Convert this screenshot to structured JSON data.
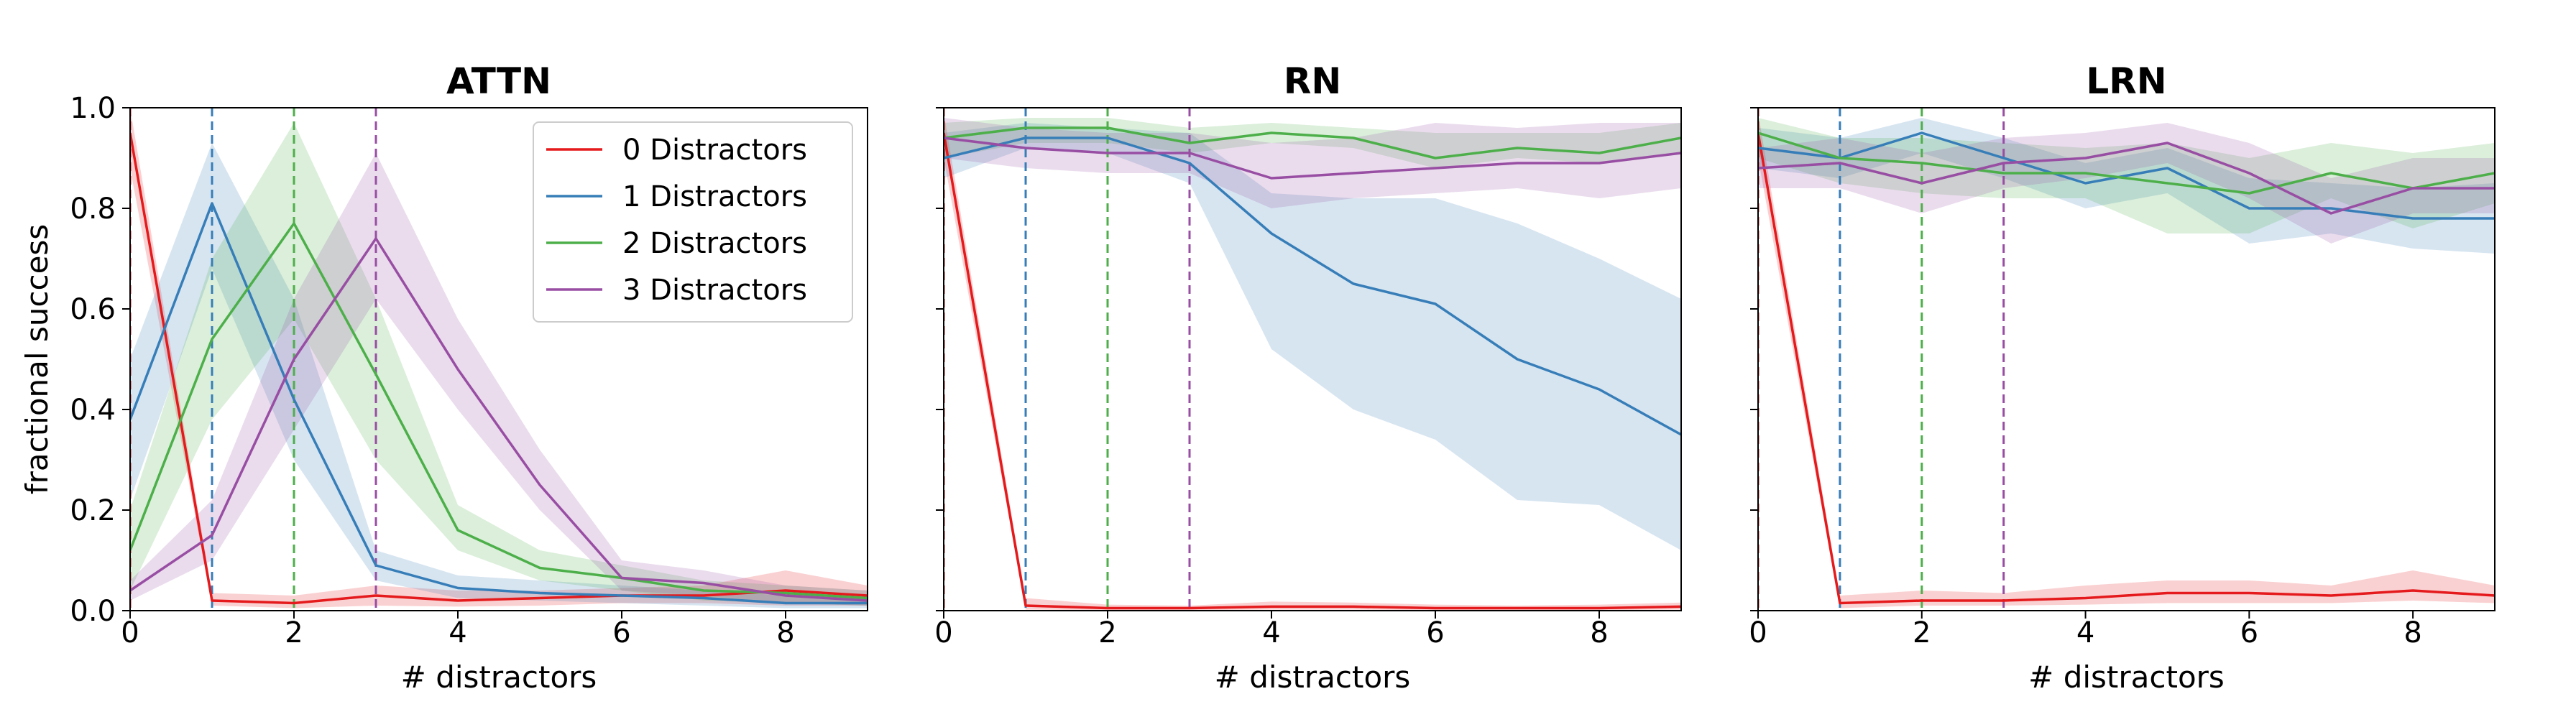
{
  "chart_data": [
    {
      "type": "line",
      "title": "ATTN",
      "xlabel": "# distractors",
      "ylabel": "fractional success",
      "xlim": [
        0,
        9
      ],
      "ylim": [
        0,
        1
      ],
      "xticks": [
        0,
        2,
        4,
        6,
        8
      ],
      "yticks": [
        0.0,
        0.2,
        0.4,
        0.6,
        0.8,
        1.0
      ],
      "legend": "top-right",
      "vlines": [
        0,
        1,
        2,
        3
      ],
      "series": [
        {
          "name": "0 Distractors",
          "color": "#e41a1c",
          "x": [
            0,
            1,
            2,
            3,
            4,
            5,
            6,
            7,
            8,
            9
          ],
          "y": [
            0.95,
            0.02,
            0.015,
            0.03,
            0.02,
            0.025,
            0.03,
            0.03,
            0.04,
            0.03
          ],
          "lower": [
            0.88,
            0.01,
            0.005,
            0.01,
            0.008,
            0.01,
            0.015,
            0.015,
            0.01,
            0.01
          ],
          "upper": [
            1.0,
            0.035,
            0.03,
            0.05,
            0.04,
            0.04,
            0.045,
            0.05,
            0.08,
            0.05
          ]
        },
        {
          "name": "1 Distractors",
          "color": "#377eb8",
          "x": [
            0,
            1,
            2,
            3,
            4,
            5,
            6,
            7,
            8,
            9
          ],
          "y": [
            0.38,
            0.81,
            0.42,
            0.09,
            0.045,
            0.035,
            0.03,
            0.025,
            0.015,
            0.015
          ],
          "lower": [
            0.22,
            0.68,
            0.3,
            0.06,
            0.025,
            0.02,
            0.015,
            0.01,
            0.005,
            0.005
          ],
          "upper": [
            0.5,
            0.93,
            0.62,
            0.12,
            0.07,
            0.06,
            0.05,
            0.04,
            0.03,
            0.03
          ]
        },
        {
          "name": "2 Distractors",
          "color": "#4daf4a",
          "x": [
            0,
            1,
            2,
            3,
            4,
            5,
            6,
            7,
            8,
            9
          ],
          "y": [
            0.12,
            0.54,
            0.77,
            0.47,
            0.16,
            0.085,
            0.065,
            0.04,
            0.035,
            0.025
          ],
          "lower": [
            0.04,
            0.38,
            0.58,
            0.3,
            0.12,
            0.06,
            0.04,
            0.02,
            0.015,
            0.01
          ],
          "upper": [
            0.2,
            0.7,
            0.97,
            0.62,
            0.21,
            0.12,
            0.09,
            0.06,
            0.05,
            0.04
          ]
        },
        {
          "name": "3 Distractors",
          "color": "#984ea3",
          "x": [
            0,
            1,
            2,
            3,
            4,
            5,
            6,
            7,
            8,
            9
          ],
          "y": [
            0.04,
            0.15,
            0.5,
            0.74,
            0.48,
            0.25,
            0.065,
            0.055,
            0.03,
            0.02
          ],
          "lower": [
            0.02,
            0.1,
            0.36,
            0.62,
            0.4,
            0.2,
            0.04,
            0.03,
            0.015,
            0.01
          ],
          "upper": [
            0.06,
            0.22,
            0.62,
            0.91,
            0.58,
            0.32,
            0.1,
            0.08,
            0.05,
            0.04
          ]
        }
      ]
    },
    {
      "type": "line",
      "title": "RN",
      "xlabel": "# distractors",
      "ylabel": "",
      "xlim": [
        0,
        9
      ],
      "ylim": [
        0,
        1
      ],
      "xticks": [
        0,
        2,
        4,
        6,
        8
      ],
      "yticks": [
        0.0,
        0.2,
        0.4,
        0.6,
        0.8,
        1.0
      ],
      "vlines": [
        0,
        1,
        2,
        3
      ],
      "series": [
        {
          "name": "0 Distractors",
          "color": "#e41a1c",
          "x": [
            0,
            1,
            2,
            3,
            4,
            5,
            6,
            7,
            8,
            9
          ],
          "y": [
            0.95,
            0.01,
            0.005,
            0.005,
            0.008,
            0.008,
            0.005,
            0.005,
            0.005,
            0.008
          ],
          "lower": [
            0.9,
            0.002,
            0.001,
            0.001,
            0.002,
            0.002,
            0.001,
            0.001,
            0.001,
            0.002
          ],
          "upper": [
            0.99,
            0.025,
            0.012,
            0.01,
            0.018,
            0.016,
            0.012,
            0.01,
            0.012,
            0.016
          ]
        },
        {
          "name": "1 Distractors",
          "color": "#377eb8",
          "x": [
            0,
            1,
            2,
            3,
            4,
            5,
            6,
            7,
            8,
            9
          ],
          "y": [
            0.9,
            0.94,
            0.94,
            0.89,
            0.75,
            0.65,
            0.61,
            0.5,
            0.44,
            0.35
          ],
          "lower": [
            0.86,
            0.92,
            0.91,
            0.85,
            0.52,
            0.4,
            0.34,
            0.22,
            0.21,
            0.12
          ],
          "upper": [
            0.95,
            0.97,
            0.96,
            0.95,
            0.83,
            0.82,
            0.82,
            0.77,
            0.7,
            0.62
          ]
        },
        {
          "name": "2 Distractors",
          "color": "#4daf4a",
          "x": [
            0,
            1,
            2,
            3,
            4,
            5,
            6,
            7,
            8,
            9
          ],
          "y": [
            0.94,
            0.96,
            0.96,
            0.93,
            0.95,
            0.94,
            0.9,
            0.92,
            0.91,
            0.94
          ],
          "lower": [
            0.9,
            0.93,
            0.93,
            0.91,
            0.93,
            0.92,
            0.88,
            0.9,
            0.89,
            0.91
          ],
          "upper": [
            0.97,
            0.98,
            0.98,
            0.96,
            0.97,
            0.96,
            0.95,
            0.95,
            0.95,
            0.97
          ]
        },
        {
          "name": "3 Distractors",
          "color": "#984ea3",
          "x": [
            0,
            1,
            2,
            3,
            4,
            5,
            6,
            7,
            8,
            9
          ],
          "y": [
            0.94,
            0.92,
            0.91,
            0.91,
            0.86,
            0.87,
            0.88,
            0.89,
            0.89,
            0.91
          ],
          "lower": [
            0.9,
            0.88,
            0.87,
            0.87,
            0.8,
            0.82,
            0.83,
            0.84,
            0.82,
            0.84
          ],
          "upper": [
            0.98,
            0.96,
            0.95,
            0.95,
            0.93,
            0.94,
            0.97,
            0.96,
            0.97,
            0.97
          ]
        }
      ]
    },
    {
      "type": "line",
      "title": "LRN",
      "xlabel": "# distractors",
      "ylabel": "",
      "xlim": [
        0,
        9
      ],
      "ylim": [
        0,
        1
      ],
      "xticks": [
        0,
        2,
        4,
        6,
        8
      ],
      "yticks": [
        0.0,
        0.2,
        0.4,
        0.6,
        0.8,
        1.0
      ],
      "vlines": [
        0,
        1,
        2,
        3
      ],
      "series": [
        {
          "name": "0 Distractors",
          "color": "#e41a1c",
          "x": [
            0,
            1,
            2,
            3,
            4,
            5,
            6,
            7,
            8,
            9
          ],
          "y": [
            0.95,
            0.015,
            0.02,
            0.02,
            0.025,
            0.035,
            0.035,
            0.03,
            0.04,
            0.03
          ],
          "lower": [
            0.9,
            0.005,
            0.01,
            0.01,
            0.012,
            0.015,
            0.015,
            0.015,
            0.02,
            0.015
          ],
          "upper": [
            0.99,
            0.03,
            0.04,
            0.035,
            0.05,
            0.06,
            0.06,
            0.05,
            0.08,
            0.05
          ]
        },
        {
          "name": "1 Distractors",
          "color": "#377eb8",
          "x": [
            0,
            1,
            2,
            3,
            4,
            5,
            6,
            7,
            8,
            9
          ],
          "y": [
            0.92,
            0.9,
            0.95,
            0.9,
            0.85,
            0.88,
            0.8,
            0.8,
            0.78,
            0.78
          ],
          "lower": [
            0.88,
            0.86,
            0.91,
            0.86,
            0.8,
            0.83,
            0.73,
            0.75,
            0.72,
            0.71
          ],
          "upper": [
            0.96,
            0.94,
            0.98,
            0.94,
            0.89,
            0.92,
            0.86,
            0.85,
            0.84,
            0.85
          ]
        },
        {
          "name": "2 Distractors",
          "color": "#4daf4a",
          "x": [
            0,
            1,
            2,
            3,
            4,
            5,
            6,
            7,
            8,
            9
          ],
          "y": [
            0.95,
            0.9,
            0.89,
            0.87,
            0.87,
            0.85,
            0.83,
            0.87,
            0.84,
            0.87
          ],
          "lower": [
            0.9,
            0.85,
            0.83,
            0.82,
            0.82,
            0.75,
            0.75,
            0.82,
            0.76,
            0.81
          ],
          "upper": [
            0.98,
            0.94,
            0.94,
            0.93,
            0.92,
            0.93,
            0.9,
            0.93,
            0.91,
            0.93
          ]
        },
        {
          "name": "3 Distractors",
          "color": "#984ea3",
          "x": [
            0,
            1,
            2,
            3,
            4,
            5,
            6,
            7,
            8,
            9
          ],
          "y": [
            0.88,
            0.89,
            0.85,
            0.89,
            0.9,
            0.93,
            0.87,
            0.79,
            0.84,
            0.84
          ],
          "lower": [
            0.84,
            0.84,
            0.79,
            0.84,
            0.86,
            0.89,
            0.82,
            0.73,
            0.79,
            0.79
          ],
          "upper": [
            0.92,
            0.94,
            0.91,
            0.94,
            0.95,
            0.97,
            0.93,
            0.86,
            0.9,
            0.9
          ]
        }
      ]
    }
  ]
}
